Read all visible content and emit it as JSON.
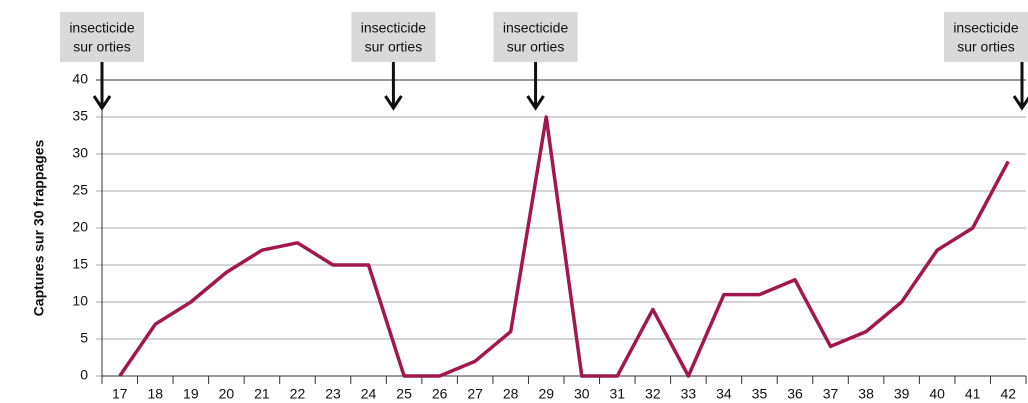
{
  "chart_data": {
    "type": "line",
    "y_label": "Captures sur 30 frappages",
    "categories": [
      "17",
      "18",
      "19",
      "20",
      "21",
      "22",
      "23",
      "24",
      "25",
      "26",
      "27",
      "28",
      "29",
      "30",
      "31",
      "32",
      "33",
      "34",
      "35",
      "36",
      "37",
      "38",
      "39",
      "40",
      "41",
      "42"
    ],
    "values": [
      0,
      7,
      10,
      14,
      17,
      18,
      15,
      15,
      0,
      0,
      2,
      6,
      35,
      0,
      0,
      9,
      0,
      11,
      11,
      13,
      4,
      6,
      10,
      17,
      20,
      29
    ],
    "color": "#a3174f",
    "ylim": [
      0,
      40
    ],
    "yticks": [
      0,
      5,
      10,
      15,
      20,
      25,
      30,
      35,
      40
    ],
    "grid": true,
    "annotations": [
      {
        "category": "17",
        "lines": [
          "insecticide",
          "sur orties"
        ]
      },
      {
        "category": "25",
        "lines": [
          "insecticide",
          "sur orties"
        ]
      },
      {
        "category": "29",
        "lines": [
          "insecticide",
          "sur orties"
        ]
      },
      {
        "category": "42",
        "lines": [
          "insecticide",
          "sur orties"
        ]
      }
    ]
  }
}
